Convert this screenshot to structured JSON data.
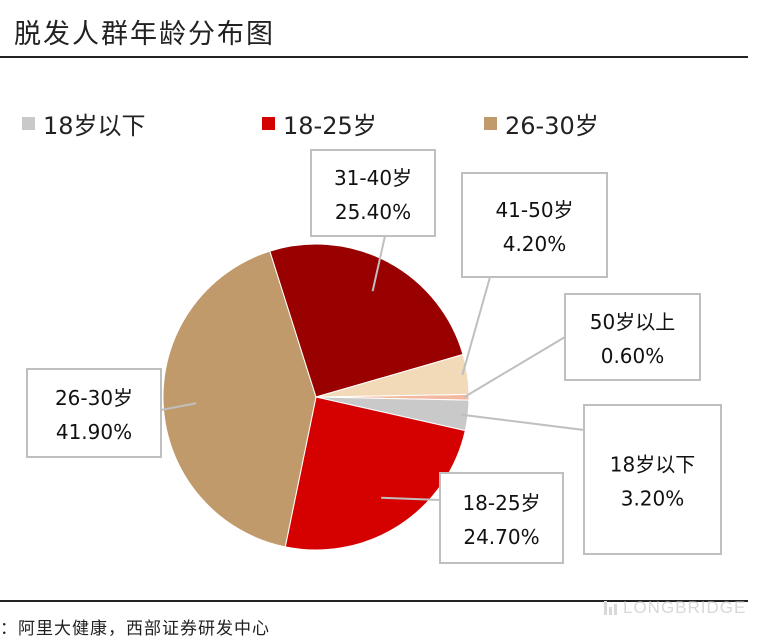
{
  "title": "脱发人群年龄分布图",
  "source": "：阿里大健康，西部证券研发中心",
  "watermark": "LONGBRIDGE",
  "colors": {
    "under18": "#c9c9c9",
    "18-25": "#d50000",
    "26-30": "#c19a6b",
    "31-40": "#990000",
    "41-50": "#f2d9b8",
    "over50": "#f4b8a0"
  },
  "legend": [
    {
      "label": "18岁以下",
      "color": "#c9c9c9"
    },
    {
      "label": "18-25岁",
      "color": "#d50000"
    },
    {
      "label": "26-30岁",
      "color": "#c19a6b"
    }
  ],
  "chart_data": {
    "type": "pie",
    "title": "脱发人群年龄分布图",
    "slices": [
      {
        "label": "50岁以上",
        "value": 0.6,
        "display": "0.60%",
        "color": "#f4b8a0"
      },
      {
        "label": "18岁以下",
        "value": 3.2,
        "display": "3.20%",
        "color": "#c9c9c9"
      },
      {
        "label": "18-25岁",
        "value": 24.7,
        "display": "24.70%",
        "color": "#d50000"
      },
      {
        "label": "26-30岁",
        "value": 41.9,
        "display": "41.90%",
        "color": "#c19a6b"
      },
      {
        "label": "31-40岁",
        "value": 25.4,
        "display": "25.40%",
        "color": "#990000"
      },
      {
        "label": "41-50岁",
        "value": 4.2,
        "display": "4.20%",
        "color": "#f2d9b8"
      }
    ],
    "legend_position": "top"
  }
}
